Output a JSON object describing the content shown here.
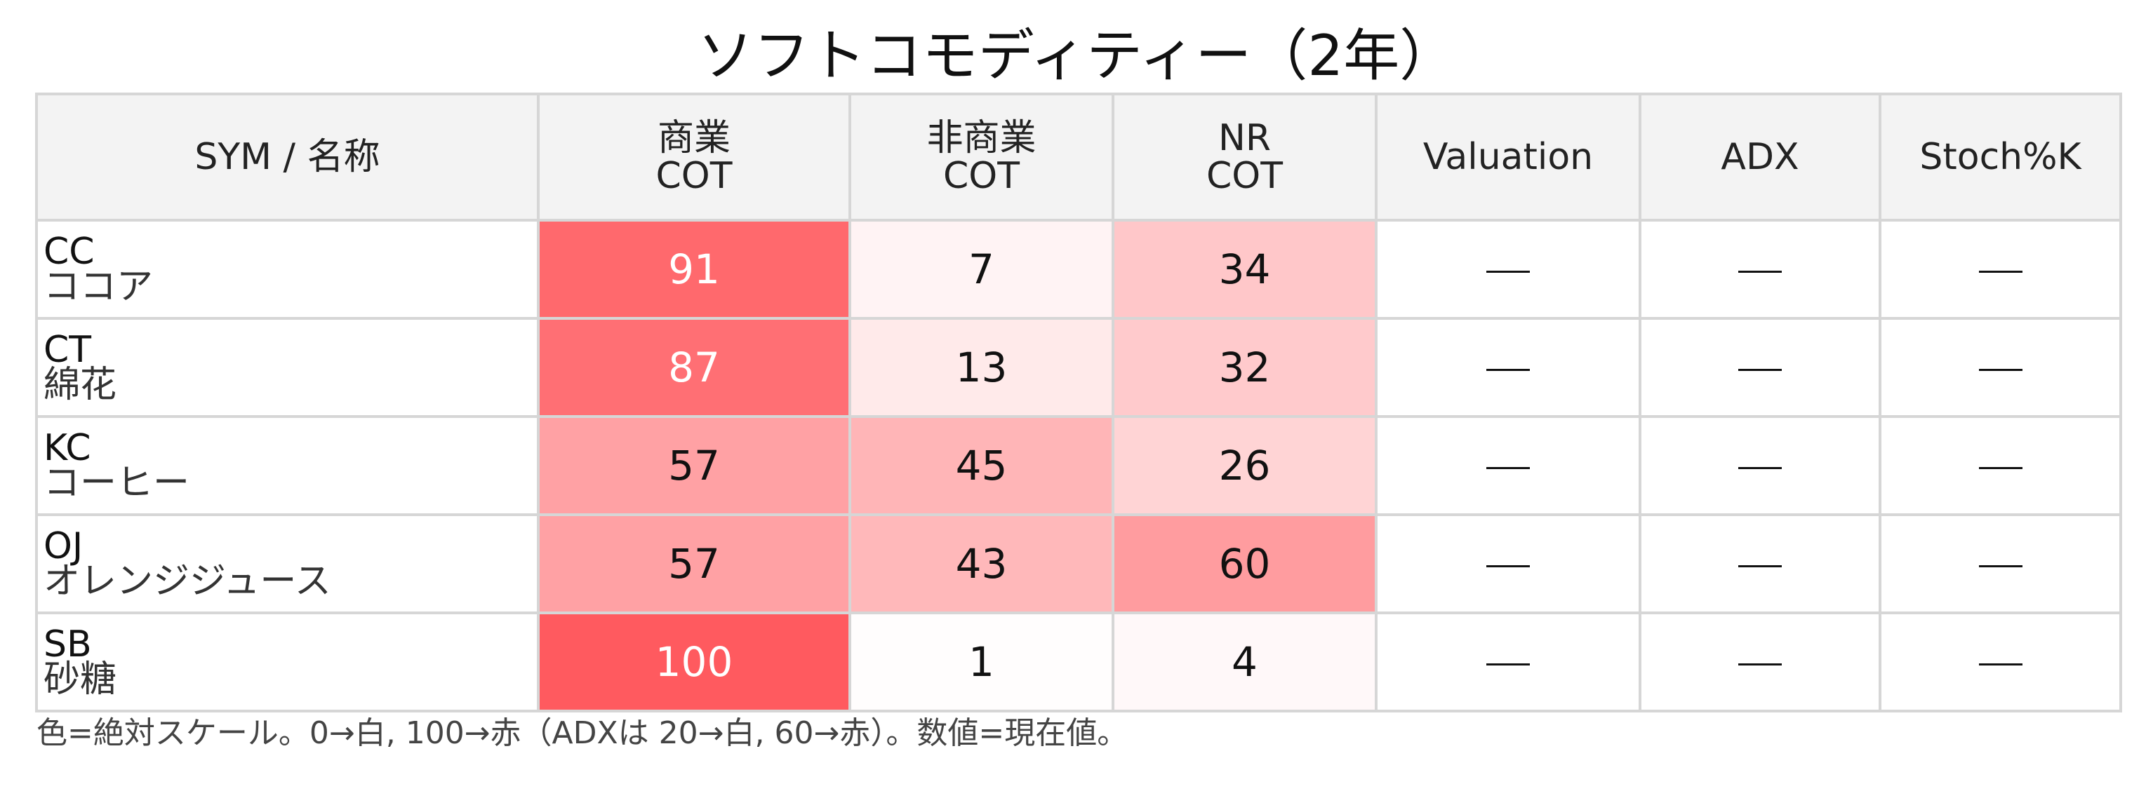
{
  "chart_data": {
    "type": "table",
    "title": "ソフトコモディティー（2年）",
    "columns": [
      {
        "key": "sym",
        "lines": [
          "SYM / 名称"
        ]
      },
      {
        "key": "commercial_cot",
        "lines": [
          "商業",
          "COT"
        ]
      },
      {
        "key": "noncommercial_cot",
        "lines": [
          "非商業",
          "COT"
        ]
      },
      {
        "key": "nr_cot",
        "lines": [
          "NR",
          "COT"
        ]
      },
      {
        "key": "valuation",
        "lines": [
          "Valuation"
        ]
      },
      {
        "key": "adx",
        "lines": [
          "ADX"
        ]
      },
      {
        "key": "stoch_k",
        "lines": [
          "Stoch%K"
        ]
      }
    ],
    "rows": [
      {
        "sym": "CC",
        "name": "ココア",
        "commercial_cot": 91,
        "noncommercial_cot": 7,
        "nr_cot": 34,
        "valuation": "—",
        "adx": "—",
        "stoch_k": "—"
      },
      {
        "sym": "CT",
        "name": "綿花",
        "commercial_cot": 87,
        "noncommercial_cot": 13,
        "nr_cot": 32,
        "valuation": "—",
        "adx": "—",
        "stoch_k": "—"
      },
      {
        "sym": "KC",
        "name": "コーヒー",
        "commercial_cot": 57,
        "noncommercial_cot": 45,
        "nr_cot": 26,
        "valuation": "—",
        "adx": "—",
        "stoch_k": "—"
      },
      {
        "sym": "OJ",
        "name": "オレンジジュース",
        "commercial_cot": 57,
        "noncommercial_cot": 43,
        "nr_cot": 60,
        "valuation": "—",
        "adx": "—",
        "stoch_k": "—"
      },
      {
        "sym": "SB",
        "name": "砂糖",
        "commercial_cot": 100,
        "noncommercial_cot": 1,
        "nr_cot": 4,
        "valuation": "—",
        "adx": "—",
        "stoch_k": "—"
      }
    ],
    "color_scale": {
      "low_value": 0,
      "high_value": 100,
      "low_color": "#ffffff",
      "high_color": "#ff5a5f",
      "light_text_color": "#ffffff",
      "dark_text_color": "#111111"
    },
    "header_background": "#f3f3f3",
    "grid_color": "#d6d6d6",
    "footnote": "色=絶対スケール。0→白, 100→赤（ADXは 20→白, 60→赤）。数値=現在値。"
  }
}
